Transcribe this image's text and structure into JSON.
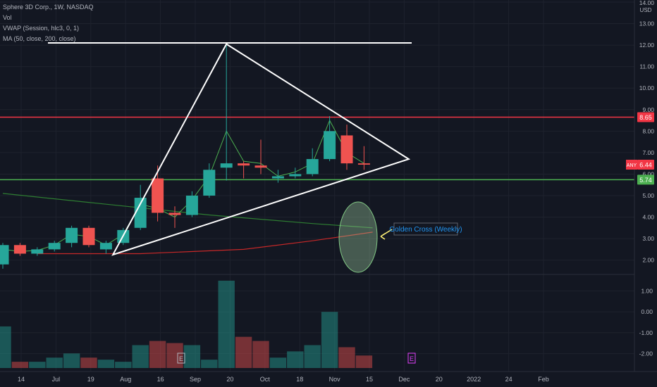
{
  "legend": {
    "symbol_line": "Sphere 3D Corp., 1W, NASDAQ",
    "vol": "Vol",
    "vwap": "VWAP (Session, hlc3, 0, 1)",
    "ma": "MA (50, close, 200, close)"
  },
  "price_axis": {
    "currency": "USD",
    "ticks": [
      "14.00",
      "13.00",
      "12.00",
      "11.00",
      "10.00",
      "9.00",
      "8.00",
      "7.00",
      "6.00",
      "5.00",
      "4.00",
      "3.00",
      "2.00"
    ],
    "badges": [
      {
        "text": "8.65",
        "color": "#f23645",
        "value": 8.65
      },
      {
        "text": "6.44",
        "color": "#f23645",
        "value": 6.44
      },
      {
        "text": "5.74",
        "color": "#4caf50",
        "value": 5.74
      }
    ],
    "symbol_badge": "ANY"
  },
  "vol_axis": {
    "ticks": [
      "1.00",
      "0.00",
      "-1.00",
      "-2.00"
    ]
  },
  "time_axis": {
    "labels": [
      "14",
      "Jul",
      "19",
      "Aug",
      "16",
      "Sep",
      "20",
      "Oct",
      "18",
      "Nov",
      "15",
      "Dec",
      "20",
      "2022",
      "24",
      "Feb"
    ]
  },
  "annotation": {
    "label": "Golden Cross (Weekly)"
  },
  "earnings_markers": [
    "E",
    "E"
  ],
  "colors": {
    "up": "#26a69a",
    "down": "#ef5350",
    "resistance": "#f23645",
    "support": "#4caf50",
    "triangle": "#ffffff",
    "ma50": "#2e7d32",
    "ma200": "#c62828",
    "vwap": "#4caf50",
    "annotation_arrow": "#fff176",
    "annotation_text": "#2196f3"
  },
  "chart_data": {
    "type": "candlestick",
    "title": "Sphere 3D Corp., 1W, NASDAQ",
    "y_range": [
      1.4,
      14.0
    ],
    "horizontal_levels": {
      "top_line": 12.1,
      "resistance": 8.65,
      "support": 5.74
    },
    "candles": [
      {
        "o": 1.8,
        "h": 2.8,
        "l": 1.6,
        "c": 2.7
      },
      {
        "o": 2.7,
        "h": 2.8,
        "l": 2.2,
        "c": 2.3
      },
      {
        "o": 2.3,
        "h": 2.6,
        "l": 2.2,
        "c": 2.5
      },
      {
        "o": 2.5,
        "h": 2.9,
        "l": 2.4,
        "c": 2.8
      },
      {
        "o": 2.8,
        "h": 3.6,
        "l": 2.6,
        "c": 3.5
      },
      {
        "o": 3.5,
        "h": 3.6,
        "l": 2.6,
        "c": 2.7
      },
      {
        "o": 2.5,
        "h": 2.9,
        "l": 2.3,
        "c": 2.8
      },
      {
        "o": 2.8,
        "h": 3.5,
        "l": 2.7,
        "c": 3.4
      },
      {
        "o": 3.5,
        "h": 5.5,
        "l": 3.4,
        "c": 4.9
      },
      {
        "o": 5.8,
        "h": 6.4,
        "l": 3.8,
        "c": 4.2
      },
      {
        "o": 4.2,
        "h": 4.5,
        "l": 3.5,
        "c": 4.1
      },
      {
        "o": 4.1,
        "h": 5.2,
        "l": 4.0,
        "c": 5.0
      },
      {
        "o": 5.0,
        "h": 6.5,
        "l": 4.9,
        "c": 6.2
      },
      {
        "o": 6.3,
        "h": 12.0,
        "l": 5.7,
        "c": 6.5
      },
      {
        "o": 6.5,
        "h": 6.6,
        "l": 5.8,
        "c": 6.4
      },
      {
        "o": 6.4,
        "h": 7.6,
        "l": 6.0,
        "c": 6.3
      },
      {
        "o": 5.8,
        "h": 6.2,
        "l": 5.6,
        "c": 5.9
      },
      {
        "o": 5.9,
        "h": 6.3,
        "l": 5.8,
        "c": 6.0
      },
      {
        "o": 6.0,
        "h": 7.2,
        "l": 5.9,
        "c": 6.7
      },
      {
        "o": 6.7,
        "h": 8.7,
        "l": 6.6,
        "c": 8.0
      },
      {
        "o": 7.8,
        "h": 8.3,
        "l": 6.2,
        "c": 6.5
      },
      {
        "o": 6.5,
        "h": 7.3,
        "l": 6.2,
        "c": 6.44
      }
    ],
    "vwap": [
      2.5,
      2.4,
      2.45,
      2.7,
      3.2,
      3.1,
      2.7,
      3.2,
      4.6,
      4.4,
      4.0,
      4.8,
      5.9,
      8.0,
      6.6,
      6.5,
      5.9,
      6.1,
      6.5,
      8.5,
      7.0,
      6.5
    ],
    "ma50": [
      {
        "x": 0,
        "y": 5.1
      },
      {
        "x": 6,
        "y": 4.6
      },
      {
        "x": 12,
        "y": 4.1
      },
      {
        "x": 18,
        "y": 3.7
      },
      {
        "x": 21.5,
        "y": 3.5
      }
    ],
    "ma200": [
      {
        "x": 2,
        "y": 2.3
      },
      {
        "x": 8,
        "y": 2.3
      },
      {
        "x": 14,
        "y": 2.5
      },
      {
        "x": 18,
        "y": 2.9
      },
      {
        "x": 21.5,
        "y": 3.3
      }
    ],
    "triangle": [
      {
        "x": 13.0,
        "y": 12.05
      },
      {
        "x": 23.6,
        "y": 6.7
      },
      {
        "x": 6.4,
        "y": 2.25
      }
    ],
    "volume_range": [
      -2.7,
      1.7
    ],
    "volume": [
      -0.7,
      -2.4,
      -2.4,
      -2.2,
      -2.0,
      -2.2,
      -2.3,
      -2.4,
      -1.6,
      -1.4,
      -1.5,
      -1.6,
      -2.3,
      1.5,
      -1.2,
      -1.4,
      -2.2,
      -1.9,
      -1.6,
      0.0,
      -1.7,
      -2.1
    ]
  }
}
